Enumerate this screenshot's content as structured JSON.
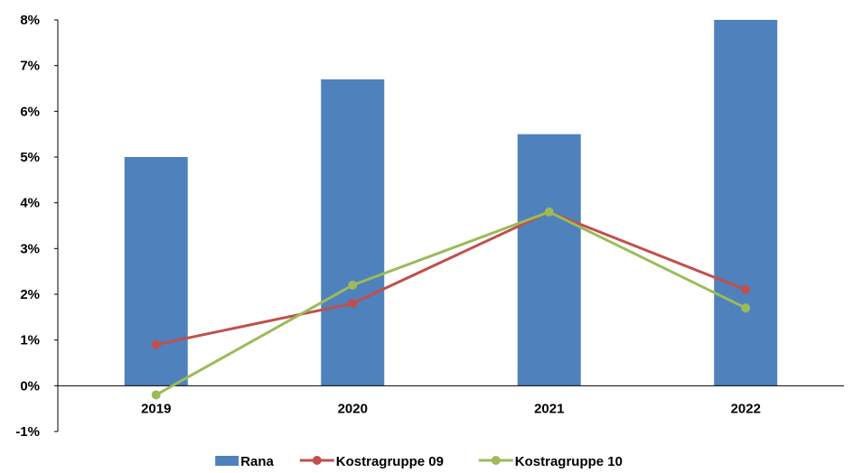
{
  "chart_data": {
    "type": "bar",
    "categories": [
      "2019",
      "2020",
      "2021",
      "2022"
    ],
    "series": [
      {
        "name": "Rana",
        "kind": "bar",
        "color": "#4F81BD",
        "values": [
          5.0,
          6.7,
          5.5,
          8.0
        ]
      },
      {
        "name": "Kostragruppe 09",
        "kind": "line",
        "color": "#C0504D",
        "values": [
          0.9,
          1.8,
          3.8,
          2.1
        ]
      },
      {
        "name": "Kostragruppe 10",
        "kind": "line",
        "color": "#9BBB59",
        "values": [
          -0.2,
          2.2,
          3.8,
          1.7
        ]
      }
    ],
    "y_ticks": [
      "8%",
      "7%",
      "6%",
      "5%",
      "4%",
      "3%",
      "2%",
      "1%",
      "0%",
      "-1%"
    ],
    "ylim": [
      -1,
      8
    ],
    "grid": false,
    "legend": "bottom-center"
  }
}
